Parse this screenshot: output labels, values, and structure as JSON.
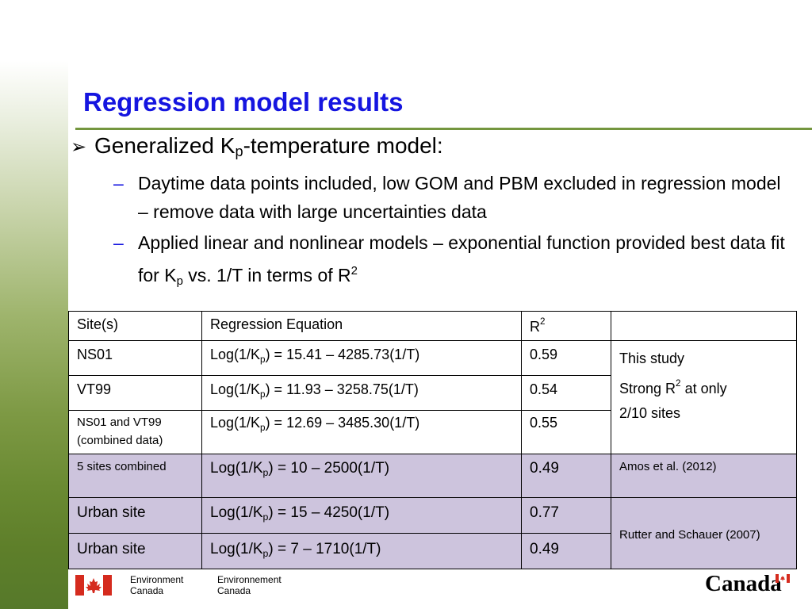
{
  "slide": {
    "title": "Regression model results",
    "main_bullet": {
      "arrow": "➢",
      "prefix": "Generalized K",
      "sub": "p",
      "suffix": "-temperature model:"
    },
    "sub_bullets": [
      {
        "dash": "–",
        "text": "Daytime data points included, low GOM and PBM excluded in regression model – remove data with large uncertainties data"
      },
      {
        "dash": "–",
        "text_a": "Applied linear and nonlinear models – exponential function provided best data fit for K",
        "sub": "p",
        "text_b": " vs. 1/T in terms of R",
        "sup": "2"
      }
    ]
  },
  "table": {
    "headers": {
      "site": "Site(s)",
      "equation": "Regression Equation",
      "r2_base": "R",
      "r2_sup": "2",
      "note": ""
    },
    "rows": [
      {
        "site": "NS01",
        "eq_pre": "Log(1/K",
        "eq_sub": "p",
        "eq_post": ") = 15.41 – 4285.73(1/T)",
        "r2": "0.59"
      },
      {
        "site": "VT99",
        "eq_pre": "Log(1/K",
        "eq_sub": "p",
        "eq_post": ") = 11.93 – 3258.75(1/T)",
        "r2": "0.54"
      },
      {
        "site_line1": "NS01 and VT99",
        "site_line2": "(combined data)",
        "eq_pre": "Log(1/K",
        "eq_sub": "p",
        "eq_post": ") = 12.69 – 3485.30(1/T)",
        "r2": "0.55"
      },
      {
        "site": "5 sites combined",
        "eq_pre": "Log(1/K",
        "eq_sub": "p",
        "eq_post": ") = 10 – 2500(1/T)",
        "r2": "0.49"
      },
      {
        "site": "Urban site",
        "eq_pre": "Log(1/K",
        "eq_sub": "p",
        "eq_post": ") = 15 – 4250(1/T)",
        "r2": "0.77"
      },
      {
        "site": "Urban site",
        "eq_pre": "Log(1/K",
        "eq_sub": "p",
        "eq_post": ") = 7 – 1710(1/T)",
        "r2": "0.49"
      }
    ],
    "notes": {
      "this_study_line1": "This study",
      "this_study_line2_pre": "Strong R",
      "this_study_line2_sup": "2",
      "this_study_line2_post": " at only",
      "this_study_line3": "2/10 sites",
      "amos": "Amos et al. (2012)",
      "rutter": "Rutter and Schauer (2007)"
    }
  },
  "footer": {
    "en_line1": "Environment",
    "en_line2": "Canada",
    "fr_line1": "Environnement",
    "fr_line2": "Canada",
    "wordmark": "Canada"
  },
  "colors": {
    "title": "#1515e0",
    "rule": "#74963e",
    "highlight_rows": "#cdc4dd",
    "flag_red": "#d52b1e"
  }
}
